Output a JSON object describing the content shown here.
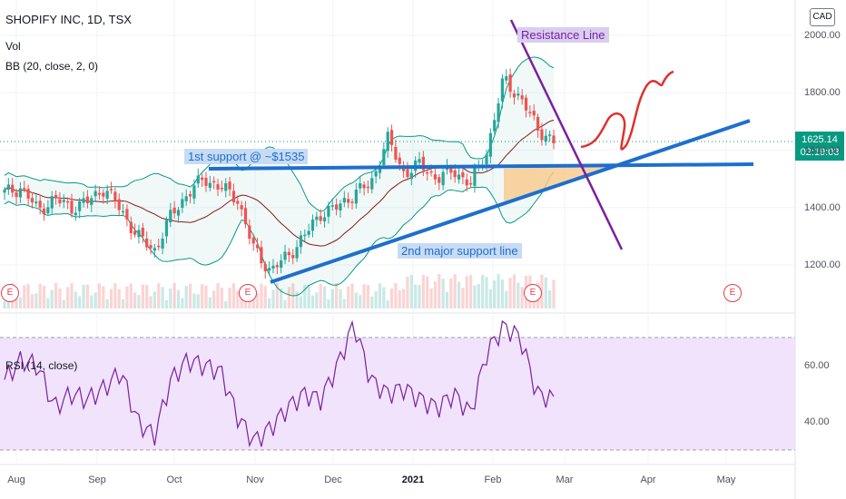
{
  "legend": {
    "symbol": "SHOPIFY INC, 1D, TSX",
    "vol": "Vol",
    "bb": "BB (20, close, 2, 0)",
    "rsi": "RSI (14, close)"
  },
  "currency_button": "CAD",
  "price_label": {
    "price": "1625.14",
    "countdown": "02:19:03"
  },
  "annotations": {
    "resistance": "Resistance Line",
    "support1": "1st support @ ~$1535",
    "support2": "2nd major support line"
  },
  "earnings_marker": "E",
  "colors": {
    "up": "#26a69a",
    "down": "#ef5350",
    "bb_band": "#089981",
    "bb_basis": "#8b1a1a",
    "rsi_line": "#7b1fa2",
    "rsi_fill": "#f0e3fb",
    "trendline": "#1e6fcc",
    "resistance_line": "#7b1fa2",
    "wedge_fill": "#f7c98b"
  },
  "chart_data": [
    {
      "type": "candlestick",
      "title": "SHOPIFY INC, 1D, TSX",
      "x_ticks": [
        "Aug",
        "Sep",
        "Oct",
        "Nov",
        "Dec",
        "2021",
        "Feb",
        "Mar",
        "Apr",
        "May"
      ],
      "y_ticks": [
        "1200.00",
        "1400.00",
        "1600.00",
        "1800.00",
        "2000.00"
      ],
      "ylim": [
        1080,
        2060
      ],
      "last_price": 1625.14,
      "close_path": [
        [
          "Aug",
          1450
        ],
        [
          "Aug",
          1470
        ],
        [
          "Aug",
          1390
        ],
        [
          "Aug",
          1430
        ],
        [
          "Aug",
          1400
        ],
        [
          "Sep",
          1420
        ],
        [
          "Sep",
          1470
        ],
        [
          "Sep",
          1390
        ],
        [
          "Sep",
          1300
        ],
        [
          "Sep",
          1250
        ],
        [
          "Oct",
          1370
        ],
        [
          "Oct",
          1450
        ],
        [
          "Oct",
          1500
        ],
        [
          "Oct",
          1470
        ],
        [
          "Oct",
          1430
        ],
        [
          "Nov",
          1250
        ],
        [
          "Nov",
          1180
        ],
        [
          "Nov",
          1230
        ],
        [
          "Nov",
          1300
        ],
        [
          "Nov",
          1380
        ],
        [
          "Dec",
          1400
        ],
        [
          "Dec",
          1450
        ],
        [
          "Dec",
          1480
        ],
        [
          "Dec",
          1640
        ],
        [
          "Dec",
          1520
        ],
        [
          "2021",
          1550
        ],
        [
          "2021",
          1500
        ],
        [
          "2021",
          1530
        ],
        [
          "2021",
          1480
        ],
        [
          "Feb",
          1600
        ],
        [
          "Feb",
          1850
        ],
        [
          "Feb",
          1780
        ],
        [
          "Feb",
          1680
        ],
        [
          "Feb",
          1625
        ]
      ],
      "bollinger": {
        "period": 20,
        "stddev": 2
      }
    },
    {
      "type": "line",
      "title": "RSI (14, close)",
      "y_ticks": [
        "40.00",
        "60.00"
      ],
      "upper_band": 70,
      "lower_band": 30,
      "values": [
        55,
        62,
        60,
        45,
        50,
        48,
        52,
        58,
        40,
        35,
        55,
        62,
        60,
        58,
        42,
        33,
        38,
        45,
        50,
        48,
        60,
        75,
        55,
        50,
        52,
        48,
        45,
        50,
        43,
        65,
        74,
        70,
        50,
        48
      ]
    }
  ]
}
